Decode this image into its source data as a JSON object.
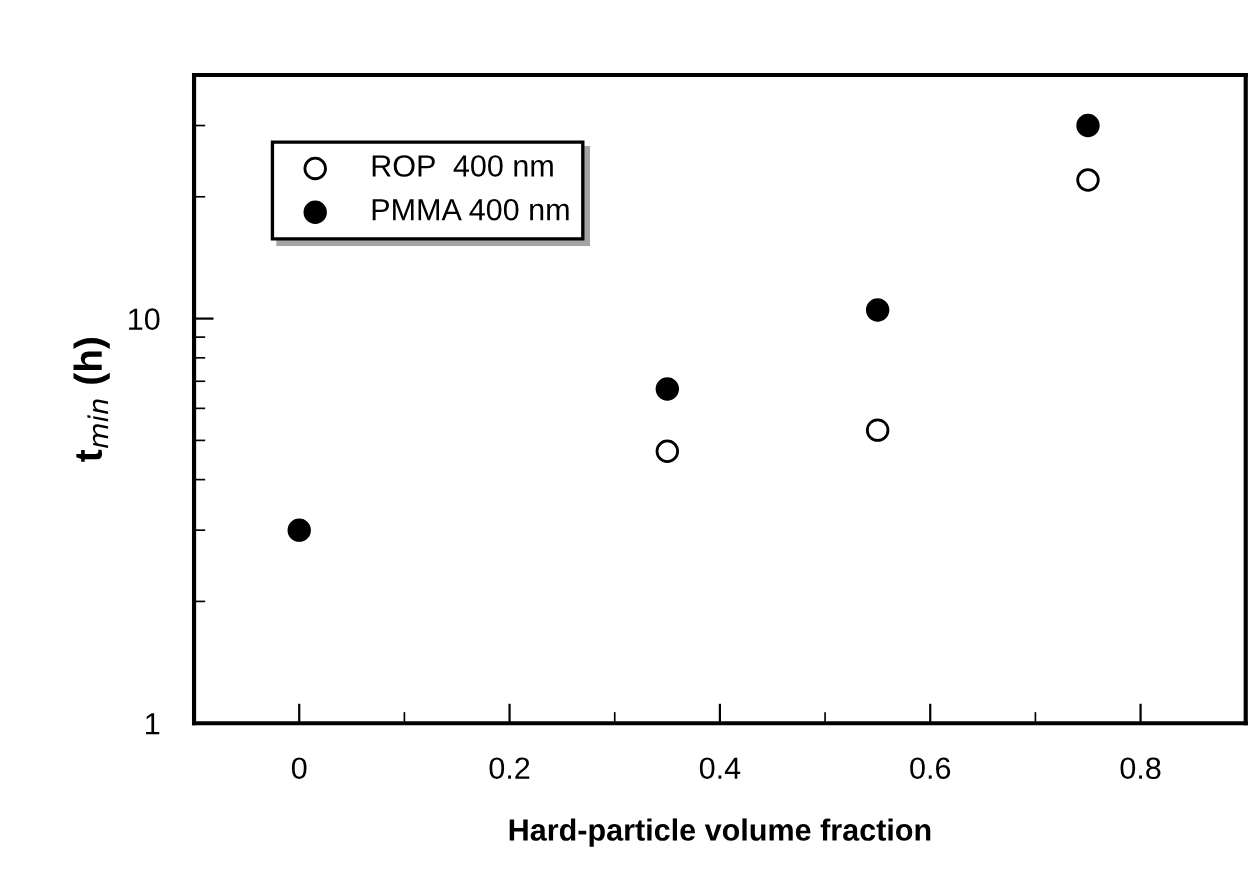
{
  "chart_data": {
    "type": "scatter",
    "xlabel": "Hard-particle volume fraction",
    "ylabel": "t$_{min}$ (h)",
    "series": [
      {
        "name": "ROP  400 nm",
        "color": "#ffffff",
        "x": [
          0.35,
          0.55,
          0.75
        ],
        "values": [
          4.7,
          5.3,
          22
        ]
      },
      {
        "name": "PMMA 400 nm",
        "color": "#000000",
        "x": [
          0,
          0.35,
          0.55,
          0.75
        ],
        "values": [
          3.0,
          6.7,
          10.5,
          30
        ]
      }
    ],
    "xlim": [
      -0.1,
      0.9
    ],
    "xticks": [
      0,
      0.2,
      0.4,
      0.6,
      0.8
    ],
    "ylim": [
      1,
      40
    ],
    "yticks": [
      1,
      10
    ],
    "log": "y",
    "marker": "circle",
    "legend": "top left",
    "grid": false
  }
}
